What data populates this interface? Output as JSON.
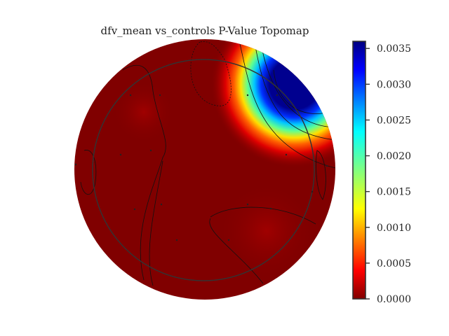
{
  "chart_data": {
    "type": "heatmap",
    "title": "dfv_mean vs_controls P-Value Topomap",
    "colormap": "jet",
    "colorbar": {
      "vmin": 0.0,
      "vmax": 0.0036,
      "ticks": [
        {
          "value": 0.0,
          "label": "0.0000"
        },
        {
          "value": 0.0005,
          "label": "0.0005"
        },
        {
          "value": 0.001,
          "label": "0.0010"
        },
        {
          "value": 0.0015,
          "label": "0.0015"
        },
        {
          "value": 0.002,
          "label": "0.0020"
        },
        {
          "value": 0.0025,
          "label": "0.0025"
        },
        {
          "value": 0.003,
          "label": "0.0030"
        },
        {
          "value": 0.0035,
          "label": "0.0035"
        }
      ]
    },
    "regions": [
      {
        "name": "background",
        "p_value": 0.0
      },
      {
        "name": "right-frontal-peak",
        "p_value": 0.0036
      }
    ]
  }
}
